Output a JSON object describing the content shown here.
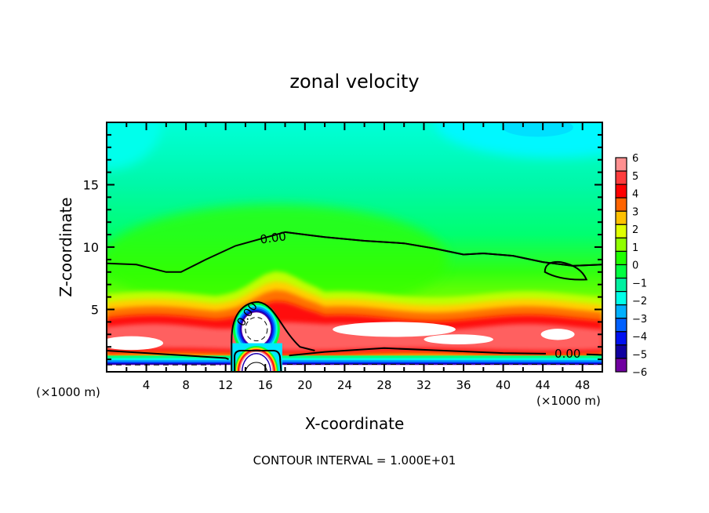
{
  "chart_data": {
    "type": "heatmap",
    "title": "zonal velocity",
    "xlabel": "X-coordinate",
    "ylabel": "Z-coordinate",
    "x_unit_label": "(×1000 m)",
    "xlim": [
      0,
      50
    ],
    "ylim": [
      0,
      20
    ],
    "x_ticks": [
      4,
      8,
      12,
      16,
      20,
      24,
      28,
      32,
      36,
      40,
      44,
      48
    ],
    "x_tick_labels": [
      "4",
      "8",
      "12",
      "16",
      "20",
      "24",
      "28",
      "32",
      "36",
      "40",
      "44",
      "48"
    ],
    "y_ticks": [
      5,
      10,
      15
    ],
    "y_tick_labels": [
      "5",
      "10",
      "15"
    ],
    "footer": "CONTOUR INTERVAL = 1.000E+01",
    "colorbar": {
      "levels": [
        6,
        5,
        4,
        3,
        2,
        1,
        0,
        -1,
        -2,
        -3,
        -4,
        -5,
        -6
      ],
      "labels": [
        "6",
        "5",
        "4",
        "3",
        "2",
        "1",
        "0",
        "−1",
        "−2",
        "−3",
        "−4",
        "−5",
        "−6"
      ],
      "colors": [
        "#ff9090",
        "#ff3c3c",
        "#ff0000",
        "#ff6400",
        "#ffc000",
        "#e0ff00",
        "#90ff00",
        "#20ff00",
        "#00ff40",
        "#00f0a0",
        "#00ffe8",
        "#00b0ff",
        "#0060ff",
        "#0010f0",
        "#1000a0",
        "#7000a0"
      ],
      "over_color": "#ffffff"
    },
    "contour_labels": [
      {
        "text": "0.00",
        "x": 16.8,
        "z": 10.7
      },
      {
        "text": "0.00",
        "x": 14.2,
        "z": 4.6
      },
      {
        "text": "0.00",
        "x": 46.5,
        "z": 1.4
      }
    ],
    "zero_contour_upper": [
      [
        0,
        8.7
      ],
      [
        3,
        8.6
      ],
      [
        6,
        8.0
      ],
      [
        7.5,
        8.0
      ],
      [
        10,
        9.0
      ],
      [
        13,
        10.1
      ],
      [
        15.5,
        10.9
      ],
      [
        18,
        11.2
      ],
      [
        22,
        10.8
      ],
      [
        26,
        10.5
      ],
      [
        30,
        10.3
      ],
      [
        33,
        9.9
      ],
      [
        36,
        9.4
      ],
      [
        38,
        9.5
      ],
      [
        41,
        9.3
      ],
      [
        44,
        8.8
      ],
      [
        47,
        8.5
      ],
      [
        50,
        8.6
      ]
    ],
    "zero_contour_lower": [
      [
        0,
        1.7
      ],
      [
        4,
        1.5
      ],
      [
        8,
        1.3
      ],
      [
        12,
        1.1
      ],
      [
        17,
        1.2
      ],
      [
        22,
        1.6
      ],
      [
        28,
        1.9
      ],
      [
        34,
        1.7
      ],
      [
        40,
        1.5
      ],
      [
        46,
        1.4
      ],
      [
        50,
        1.3
      ]
    ],
    "features": {
      "vortex_center_x": 15.1,
      "vortex_center_z": 3.3,
      "small_closed_contour": {
        "x": 45.8,
        "z": 7.5
      }
    }
  }
}
